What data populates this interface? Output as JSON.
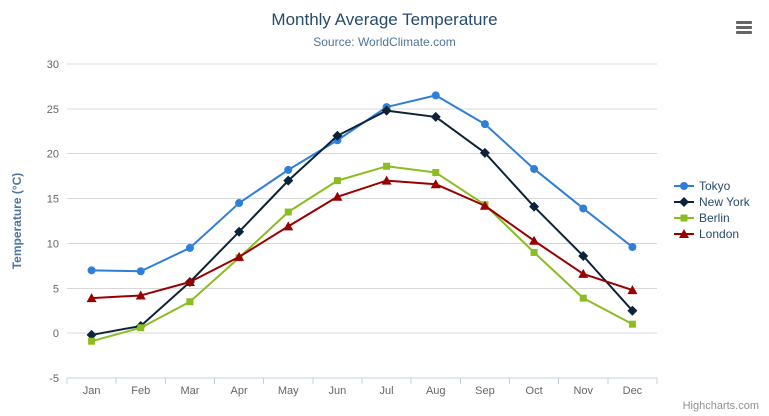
{
  "header": {
    "title": "Monthly Average Temperature",
    "subtitle": "Source: WorldClimate.com"
  },
  "icons": {
    "export_menu": "hamburger-icon"
  },
  "credits": {
    "label": "Highcharts.com"
  },
  "chart_data": {
    "type": "line",
    "title": "Monthly Average Temperature",
    "subtitle": "Source: WorldClimate.com",
    "categories": [
      "Jan",
      "Feb",
      "Mar",
      "Apr",
      "May",
      "Jun",
      "Jul",
      "Aug",
      "Sep",
      "Oct",
      "Nov",
      "Dec"
    ],
    "series": [
      {
        "name": "Tokyo",
        "color": "#2f7ed8",
        "marker": "circle",
        "values": [
          7.0,
          6.9,
          9.5,
          14.5,
          18.2,
          21.5,
          25.2,
          26.5,
          23.3,
          18.3,
          13.9,
          9.6
        ]
      },
      {
        "name": "New York",
        "color": "#0d233a",
        "marker": "diamond",
        "values": [
          -0.2,
          0.8,
          5.7,
          11.3,
          17.0,
          22.0,
          24.8,
          24.1,
          20.1,
          14.1,
          8.6,
          2.5
        ]
      },
      {
        "name": "Berlin",
        "color": "#8bbc21",
        "marker": "square",
        "values": [
          -0.9,
          0.6,
          3.5,
          8.4,
          13.5,
          17.0,
          18.6,
          17.9,
          14.3,
          9.0,
          3.9,
          1.0
        ]
      },
      {
        "name": "London",
        "color": "#990000",
        "marker": "triangle",
        "values": [
          3.9,
          4.2,
          5.7,
          8.5,
          11.9,
          15.2,
          17.0,
          16.6,
          14.2,
          10.3,
          6.6,
          4.8
        ]
      }
    ],
    "xlabel": "",
    "ylabel": "Temperature (°C)",
    "ylim": [
      -5,
      30
    ],
    "ytick_interval": 5,
    "grid": true,
    "legend_position": "right",
    "axis_colors": {
      "gridline": "#d8d8d8",
      "axis_line": "#c0d0e0",
      "tick_label": "#666666"
    }
  }
}
